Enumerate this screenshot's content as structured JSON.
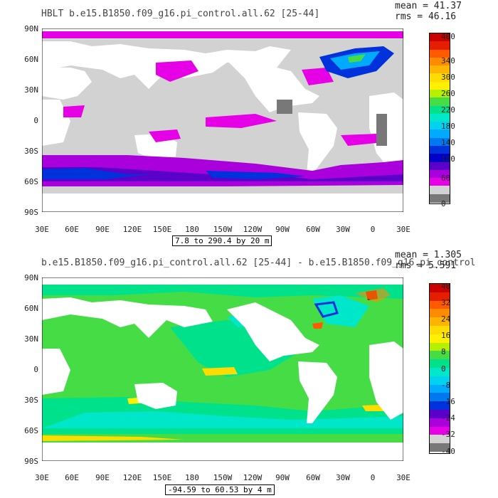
{
  "panels": [
    {
      "title": "HBLT b.e15.B1850.f09_g16.pi_control.all.62 [25-44]",
      "mean": "mean = 41.37",
      "rms": "rms = 46.16",
      "range": "7.8 to 290.4 by 20 m",
      "lat_labels": [
        "90N",
        "60N",
        "30N",
        "0",
        "30S",
        "60S",
        "90S"
      ],
      "lon_labels": [
        "30E",
        "60E",
        "90E",
        "120E",
        "150E",
        "180",
        "150W",
        "120W",
        "90W",
        "60W",
        "30W",
        "0",
        "30E"
      ],
      "colorbar": {
        "labels": [
          "400",
          "340",
          "300",
          "260",
          "220",
          "180",
          "140",
          "100",
          "60",
          "0"
        ],
        "colors": [
          "#c80000",
          "#e61e00",
          "#ff5a00",
          "#ff8c00",
          "#ffb400",
          "#ffdc00",
          "#fff000",
          "#b4f000",
          "#46dc46",
          "#00e18c",
          "#00e6c8",
          "#00d2f0",
          "#00aaff",
          "#0078f0",
          "#0032dc",
          "#0000c8",
          "#5a00c8",
          "#aa00dc",
          "#e600e6",
          "#d2d2d2",
          "#787878"
        ]
      }
    },
    {
      "title": "b.e15.B1850.f09_g16.pi_control.all.62 [25-44] - b.e15.B1850.f09_g16.pi_control",
      "mean": "mean = 1.305",
      "rms": "rms = 5.591",
      "range": "-94.59 to 60.53 by 4 m",
      "lat_labels": [
        "90N",
        "60N",
        "30N",
        "0",
        "30S",
        "60S",
        "90S"
      ],
      "lon_labels": [
        "30E",
        "60E",
        "90E",
        "120E",
        "150E",
        "180",
        "150W",
        "120W",
        "90W",
        "60W",
        "30W",
        "0",
        "30E"
      ],
      "colorbar": {
        "labels": [
          "40",
          "32",
          "24",
          "16",
          "8",
          "0",
          "-8",
          "-16",
          "-24",
          "-32",
          "-40"
        ],
        "colors": [
          "#c80000",
          "#e61e00",
          "#ff5a00",
          "#ff8c00",
          "#ffb400",
          "#ffdc00",
          "#fff000",
          "#b4f000",
          "#46dc46",
          "#00e18c",
          "#00e6c8",
          "#00d2f0",
          "#00aaff",
          "#0078f0",
          "#0032dc",
          "#5a00c8",
          "#aa00dc",
          "#e600e6",
          "#d2d2d2",
          "#787878"
        ]
      }
    }
  ]
}
